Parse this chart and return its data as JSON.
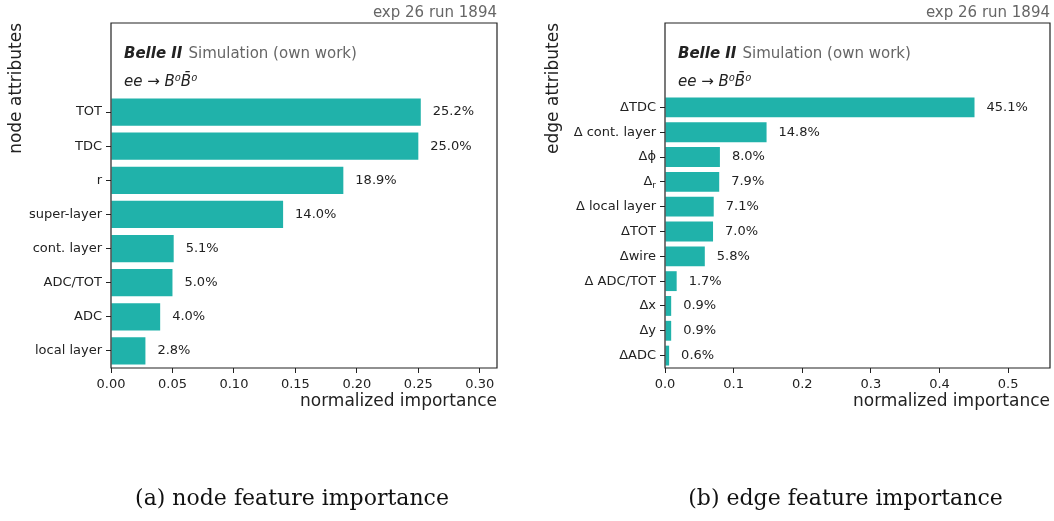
{
  "chart_data": [
    {
      "type": "bar",
      "orientation": "horizontal",
      "title": "(a) node feature importance",
      "xlabel": "normalized importance",
      "ylabel": "node attributes",
      "categories": [
        "TOT",
        "TDC",
        "r",
        "super-layer",
        "cont. layer",
        "ADC/TOT",
        "ADC",
        "local layer"
      ],
      "values": [
        0.252,
        0.25,
        0.189,
        0.14,
        0.051,
        0.05,
        0.04,
        0.028
      ],
      "value_labels": [
        "25.2%",
        "25.0%",
        "18.9%",
        "14.0%",
        "5.1%",
        "5.0%",
        "4.0%",
        "2.8%"
      ],
      "color": "#20b2aa",
      "xlim": [
        0,
        0.314
      ],
      "xticks": [
        {
          "value": 0,
          "label": "0.00"
        },
        {
          "value": 0.05,
          "label": "0.05"
        },
        {
          "value": 0.1,
          "label": "0.10"
        },
        {
          "value": 0.15,
          "label": "0.15"
        },
        {
          "value": 0.2,
          "label": "0.20"
        },
        {
          "value": 0.25,
          "label": "0.25"
        },
        {
          "value": 0.3,
          "label": "0.30"
        }
      ],
      "annotations": [
        "exp 26 run 1894",
        "Belle II",
        "Simulation (own work)",
        "ee → B⁰B̄⁰"
      ]
    },
    {
      "type": "bar",
      "orientation": "horizontal",
      "title": "(b) edge feature importance",
      "xlabel": "normalized importance",
      "ylabel": "edge attributes",
      "categories": [
        "ΔTDC",
        "Δ cont. layer",
        "Δϕ",
        "Δ$_{r}$",
        "Δ local layer",
        "ΔTOT",
        "Δwire",
        "Δ ADC/TOT",
        "Δx",
        "Δy",
        "ΔADC"
      ],
      "values": [
        0.451,
        0.148,
        0.08,
        0.079,
        0.071,
        0.07,
        0.058,
        0.017,
        0.009,
        0.009,
        0.006
      ],
      "value_labels": [
        "45.1%",
        "14.8%",
        "8.0%",
        "7.9%",
        "7.1%",
        "7.0%",
        "5.8%",
        "1.7%",
        "0.9%",
        "0.9%",
        "0.6%"
      ],
      "color": "#20b2aa",
      "xlim": [
        0,
        0.561
      ],
      "xticks": [
        {
          "value": 0,
          "label": "0.0"
        },
        {
          "value": 0.1,
          "label": "0.1"
        },
        {
          "value": 0.2,
          "label": "0.2"
        },
        {
          "value": 0.3,
          "label": "0.3"
        },
        {
          "value": 0.4,
          "label": "0.4"
        },
        {
          "value": 0.5,
          "label": "0.5"
        }
      ],
      "annotations": [
        "exp 26 run 1894",
        "Belle II",
        "Simulation (own work)",
        "ee → B⁰B̄⁰"
      ]
    }
  ]
}
